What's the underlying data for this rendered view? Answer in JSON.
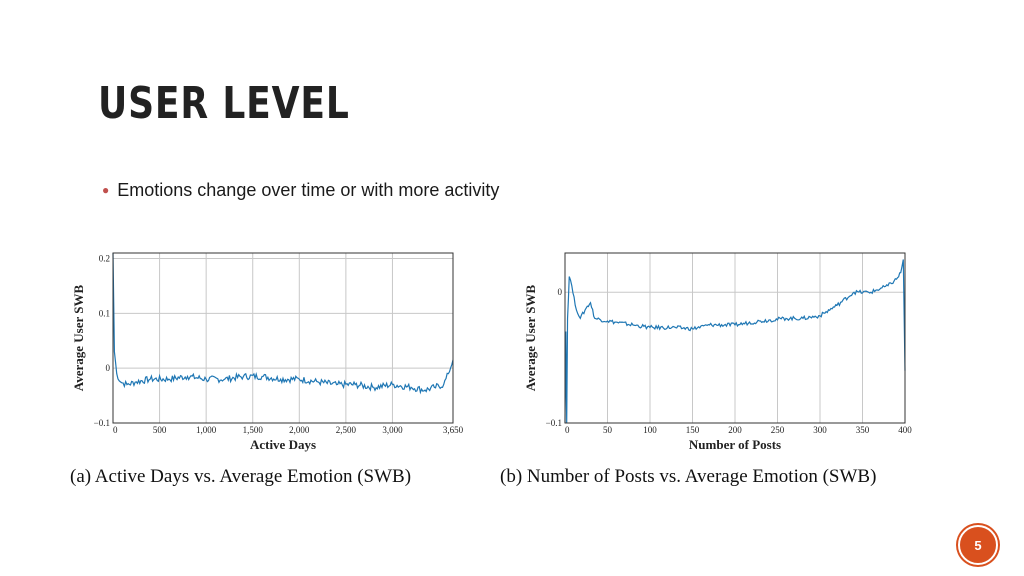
{
  "slide": {
    "title": "USER LEVEL",
    "bullet": "Emotions change over time or with more activity",
    "page_number": "5"
  },
  "colors": {
    "accent": "#d9501e",
    "bullet": "#c0504d",
    "line": "#1f77b4",
    "grid": "#c8c8c8"
  },
  "chart_data": [
    {
      "type": "line",
      "caption": "(a) Active Days vs. Average Emotion (SWB)",
      "xlabel": "Active Days",
      "ylabel": "Average User SWB",
      "xlim": [
        0,
        3650
      ],
      "ylim": [
        -0.1,
        0.21
      ],
      "xticks": [
        0,
        500,
        1000,
        1500,
        2000,
        2500,
        3000,
        3650
      ],
      "xtick_labels": [
        "0",
        "500",
        "1,000",
        "1,500",
        "2,000",
        "2,500",
        "3,000",
        "3,650"
      ],
      "yticks": [
        -0.1,
        0,
        0.1,
        0.2
      ],
      "ytick_labels": [
        "−0.1",
        "0",
        "0.1",
        "0.2"
      ],
      "grid": true,
      "series": [
        {
          "x": [
            0,
            15,
            40,
            80,
            150,
            250,
            400,
            600,
            800,
            1000,
            1200,
            1400,
            1600,
            1800,
            2000,
            2200,
            2400,
            2600,
            2800,
            3000,
            3200,
            3350,
            3450,
            3550,
            3600,
            3650
          ],
          "y": [
            0.21,
            0.03,
            -0.01,
            -0.025,
            -0.03,
            -0.025,
            -0.02,
            -0.02,
            -0.015,
            -0.02,
            -0.02,
            -0.015,
            -0.015,
            -0.02,
            -0.02,
            -0.025,
            -0.03,
            -0.03,
            -0.035,
            -0.03,
            -0.035,
            -0.04,
            -0.035,
            -0.03,
            -0.01,
            0.015
          ],
          "noise": 0.006
        }
      ]
    },
    {
      "type": "line",
      "caption": "(b) Number of Posts vs. Average Emotion (SWB)",
      "xlabel": "Number of Posts",
      "ylabel": "Average User SWB",
      "xlim": [
        0,
        400
      ],
      "ylim": [
        -0.1,
        0.03
      ],
      "xticks": [
        0,
        50,
        100,
        150,
        200,
        250,
        300,
        350,
        400
      ],
      "xtick_labels": [
        "0",
        "50",
        "100",
        "150",
        "200",
        "250",
        "300",
        "350",
        "400"
      ],
      "yticks": [
        -0.1,
        0
      ],
      "ytick_labels": [
        "−0.1",
        "0"
      ],
      "grid": true,
      "series": [
        {
          "x": [
            0,
            1,
            2,
            3,
            5,
            8,
            12,
            18,
            25,
            30,
            35,
            50,
            80,
            100,
            130,
            150,
            170,
            200,
            230,
            260,
            280,
            300,
            320,
            340,
            360,
            380,
            390,
            395,
            398,
            400
          ],
          "y": [
            -0.1,
            -0.03,
            -0.1,
            -0.02,
            0.012,
            0.005,
            -0.01,
            -0.02,
            -0.012,
            -0.008,
            -0.02,
            -0.022,
            -0.025,
            -0.027,
            -0.027,
            -0.028,
            -0.025,
            -0.025,
            -0.022,
            -0.02,
            -0.02,
            -0.018,
            -0.01,
            0,
            0,
            0.005,
            0.01,
            0.015,
            0.025,
            -0.06
          ],
          "noise": 0.0015
        }
      ]
    }
  ]
}
